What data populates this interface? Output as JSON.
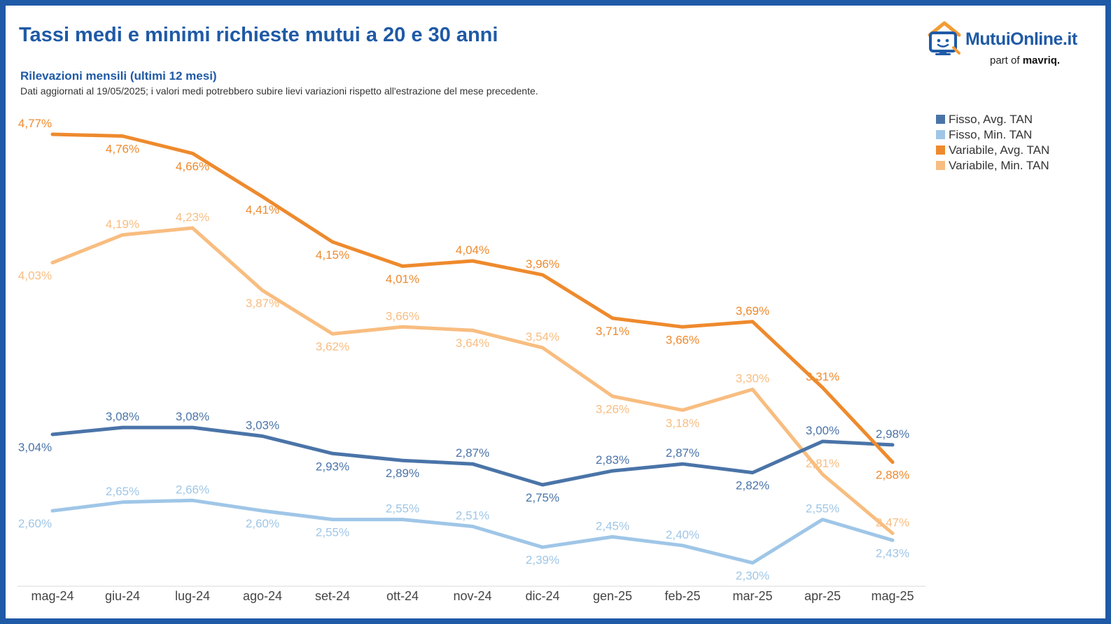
{
  "header": {
    "title": "Tassi medi e minimi richieste mutui a 20 e 30 anni",
    "subtitle": "Rilevazioni mensili (ultimi 12 mesi)",
    "note": "Dati aggiornati al 19/05/2025; i valori medi potrebbero subire lievi variazioni rispetto all'estrazione del mese precedente."
  },
  "logo": {
    "name": "MutuiOnline.it",
    "tagline_prefix": "part of",
    "tagline_brand": "mavriq."
  },
  "colors": {
    "accent": "#1f5aa6",
    "fisso_avg": "#4a74a8",
    "fisso_min": "#9fc6e7",
    "variabile_avg": "#ee8a2d",
    "variabile_min": "#f8bd80",
    "logo_orange": "#f39c34"
  },
  "chart_data": {
    "type": "line",
    "title": "Tassi medi e minimi richieste mutui a 20 e 30 anni",
    "xlabel": "",
    "ylabel": "",
    "ylim": [
      2.0,
      4.9
    ],
    "grid": false,
    "legend": "top-right",
    "categories": [
      "mag-24",
      "giu-24",
      "lug-24",
      "ago-24",
      "set-24",
      "ott-24",
      "nov-24",
      "dic-24",
      "gen-25",
      "feb-25",
      "mar-25",
      "apr-25",
      "mag-25"
    ],
    "series": [
      {
        "name": "Fisso, Avg. TAN",
        "color": "#4a74a8",
        "values": [
          3.04,
          3.08,
          3.08,
          3.03,
          2.93,
          2.89,
          2.87,
          2.75,
          2.83,
          2.87,
          2.82,
          3.0,
          2.98
        ],
        "labels": [
          "3,04%",
          "3,08%",
          "3,08%",
          "3,03%",
          "2,93%",
          "2,89%",
          "2,87%",
          "2,75%",
          "2,83%",
          "2,87%",
          "2,82%",
          "3,00%",
          "2,98%"
        ]
      },
      {
        "name": "Fisso, Min. TAN",
        "color": "#9fc6e7",
        "values": [
          2.6,
          2.65,
          2.66,
          2.6,
          2.55,
          2.55,
          2.51,
          2.39,
          2.45,
          2.4,
          2.3,
          2.55,
          2.43
        ],
        "labels": [
          "2,60%",
          "2,65%",
          "2,66%",
          "2,60%",
          "2,55%",
          "2,55%",
          "2,51%",
          "2,39%",
          "2,45%",
          "2,40%",
          "2,30%",
          "2,55%",
          "2,43%"
        ]
      },
      {
        "name": "Variabile, Avg. TAN",
        "color": "#ee8a2d",
        "values": [
          4.77,
          4.76,
          4.66,
          4.41,
          4.15,
          4.01,
          4.04,
          3.96,
          3.71,
          3.66,
          3.69,
          3.31,
          2.88
        ],
        "labels": [
          "4,77%",
          "4,76%",
          "4,66%",
          "4,41%",
          "4,15%",
          "4,01%",
          "4,04%",
          "3,96%",
          "3,71%",
          "3,66%",
          "3,69%",
          "3,31%",
          "2,88%"
        ]
      },
      {
        "name": "Variabile, Min. TAN",
        "color": "#f8bd80",
        "values": [
          4.03,
          4.19,
          4.23,
          3.87,
          3.62,
          3.66,
          3.64,
          3.54,
          3.26,
          3.18,
          3.3,
          2.81,
          2.47
        ],
        "labels": [
          "4,03%",
          "4,19%",
          "4,23%",
          "3,87%",
          "3,62%",
          "3,66%",
          "3,64%",
          "3,54%",
          "3,26%",
          "3,18%",
          "3,30%",
          "2,81%",
          "2,47%"
        ]
      }
    ]
  }
}
